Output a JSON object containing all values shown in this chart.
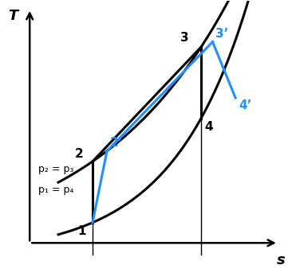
{
  "fig_width": 3.61,
  "fig_height": 3.38,
  "dpi": 100,
  "bg_color": "#ffffff",
  "black_color": "#000000",
  "blue_color": "#1E90FF",
  "axis_label_T": "T",
  "axis_label_s": "s",
  "label_p2p3": "p₂ = p₃",
  "label_p1p4": "p₁ = p₄",
  "xlim": [
    0.0,
    1.0
  ],
  "ylim": [
    0.0,
    1.0
  ],
  "label_fontsize": 13,
  "point_fontsize": 11,
  "annotation_fontsize": 9,
  "linewidth_black": 2.2,
  "linewidth_blue": 2.2,
  "pt1": [
    0.32,
    0.13
  ],
  "pt2": [
    0.32,
    0.37
  ],
  "pt3": [
    0.7,
    0.82
  ],
  "pt4": [
    0.7,
    0.54
  ],
  "pt2p": [
    0.37,
    0.41
  ],
  "pt3p": [
    0.74,
    0.84
  ],
  "pt4p": [
    0.82,
    0.62
  ],
  "isobar_high_s0": 0.18,
  "isobar_high_s1": 0.9,
  "isobar_low_s0": 0.18,
  "isobar_low_s1": 0.9,
  "isobar_exp_scale_hi": 2.8,
  "isobar_exp_scale_lo": 2.8,
  "isobar_hi_base_T": 0.06,
  "isobar_lo_base_T": 0.02,
  "isobar_hi_coeff": 0.38,
  "isobar_lo_coeff": 0.2
}
